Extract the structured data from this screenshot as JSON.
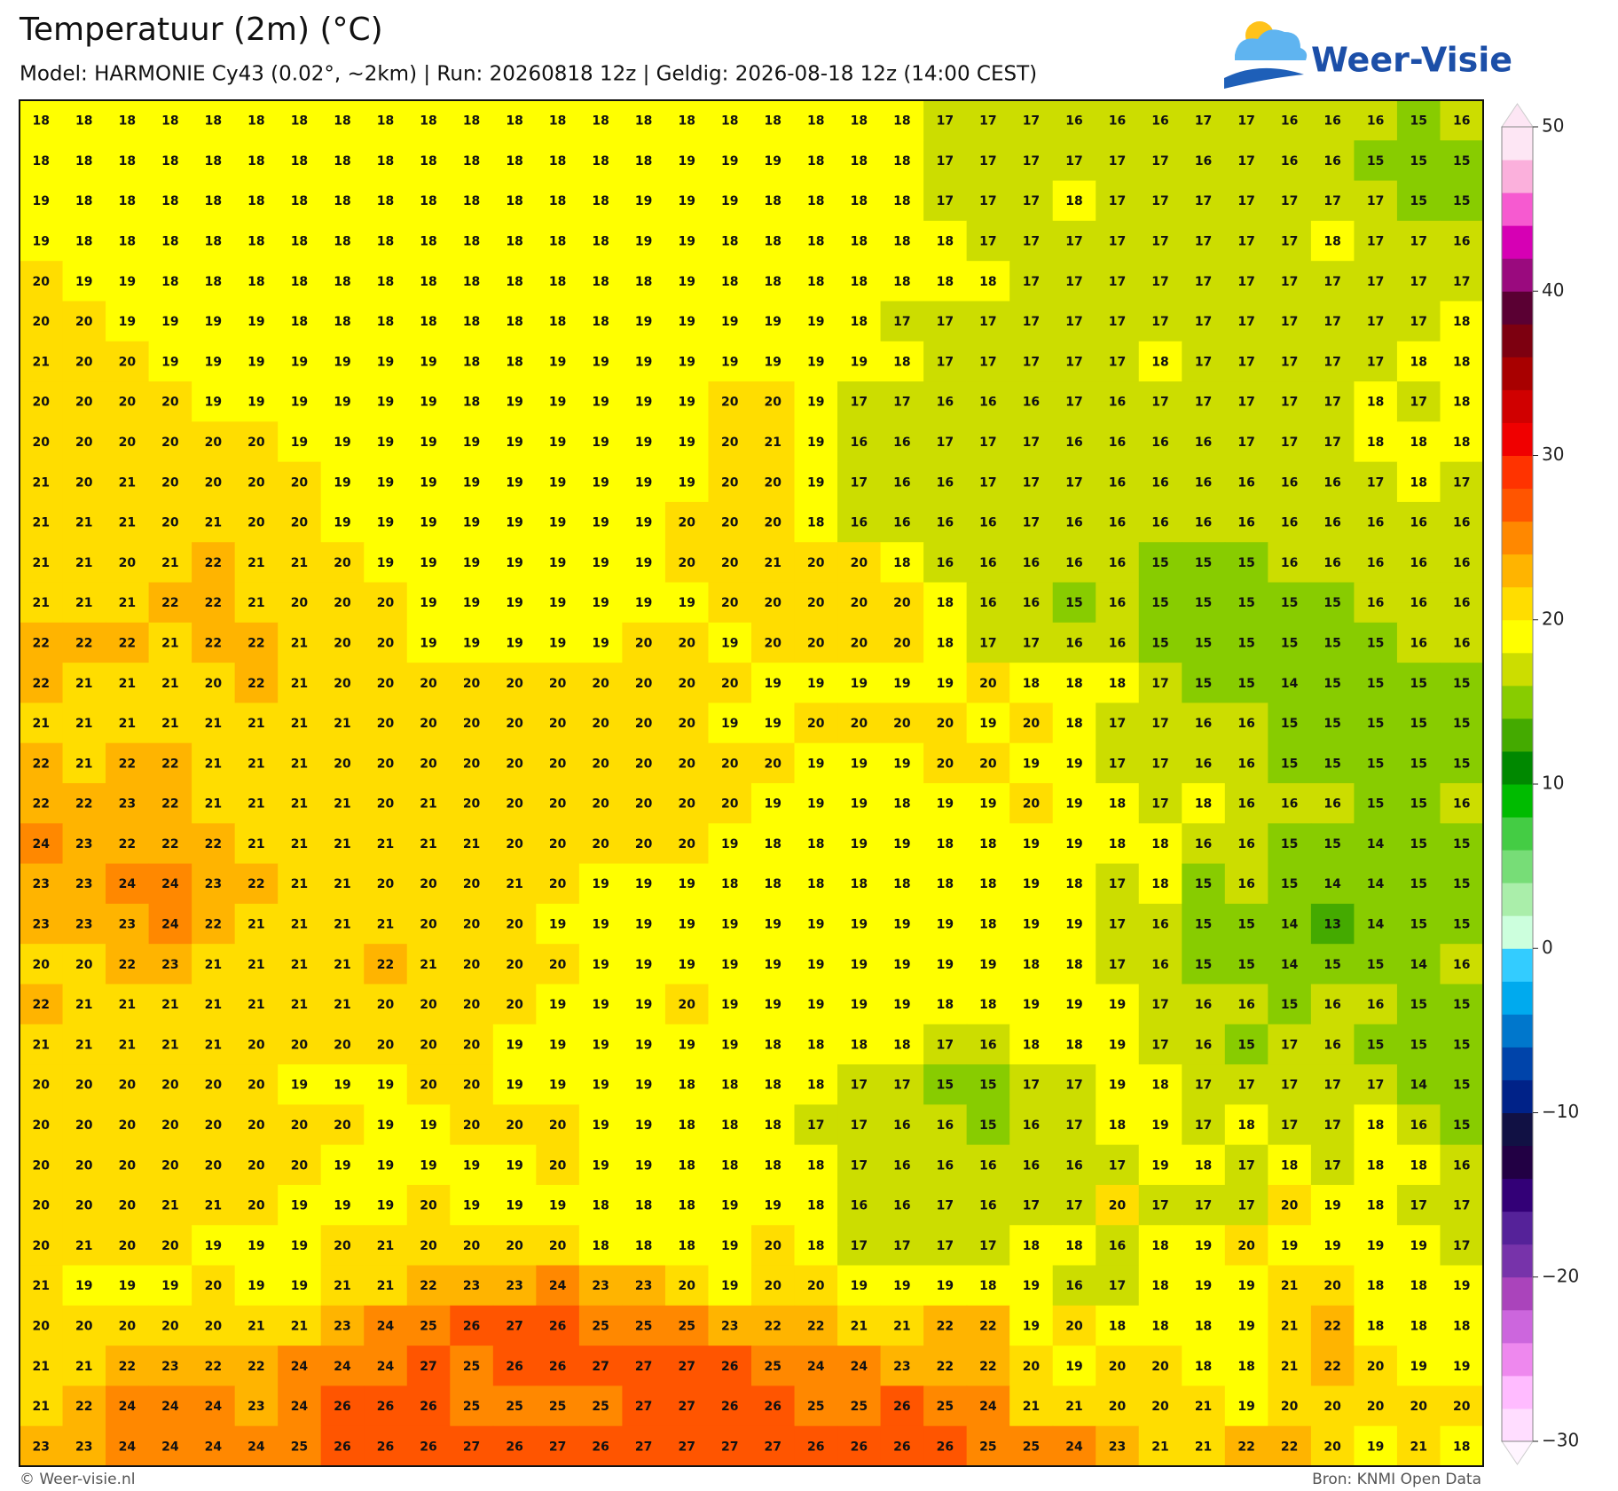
{
  "header": {
    "title": "Temperatuur (2m) (°C)",
    "subtitle": "Model: HARMONIE Cy43 (0.02°, ~2km)  |  Run: 20260818 12z  |  Geldig: 2026-08-18 12z (14:00 CEST)"
  },
  "logo": {
    "text": "Weer-Visie"
  },
  "map": {
    "grid": [
      [
        18,
        18,
        18,
        18,
        18,
        18,
        18,
        18,
        18,
        18,
        18,
        18,
        18,
        18,
        18,
        18,
        18,
        18,
        18,
        18,
        18,
        17,
        17,
        17,
        16,
        16,
        16,
        17,
        17,
        16,
        16,
        16,
        15,
        16
      ],
      [
        18,
        18,
        18,
        18,
        18,
        18,
        18,
        18,
        18,
        18,
        18,
        18,
        18,
        18,
        18,
        19,
        19,
        19,
        18,
        18,
        18,
        17,
        17,
        17,
        17,
        17,
        17,
        16,
        17,
        16,
        16,
        15,
        15,
        15
      ],
      [
        19,
        18,
        18,
        18,
        18,
        18,
        18,
        18,
        18,
        18,
        18,
        18,
        18,
        18,
        19,
        19,
        19,
        18,
        18,
        18,
        18,
        17,
        17,
        17,
        18,
        17,
        17,
        17,
        17,
        17,
        17,
        17,
        15,
        15
      ],
      [
        19,
        18,
        18,
        18,
        18,
        18,
        18,
        18,
        18,
        18,
        18,
        18,
        18,
        18,
        19,
        19,
        18,
        18,
        18,
        18,
        18,
        18,
        17,
        17,
        17,
        17,
        17,
        17,
        17,
        17,
        18,
        17,
        17,
        16
      ],
      [
        20,
        19,
        19,
        18,
        18,
        18,
        18,
        18,
        18,
        18,
        18,
        18,
        18,
        18,
        18,
        19,
        18,
        18,
        18,
        18,
        18,
        18,
        18,
        17,
        17,
        17,
        17,
        17,
        17,
        17,
        17,
        17,
        17,
        17
      ],
      [
        20,
        20,
        19,
        19,
        19,
        19,
        18,
        18,
        18,
        18,
        18,
        18,
        18,
        18,
        19,
        19,
        19,
        19,
        19,
        18,
        17,
        17,
        17,
        17,
        17,
        17,
        17,
        17,
        17,
        17,
        17,
        17,
        17,
        18
      ],
      [
        21,
        20,
        20,
        19,
        19,
        19,
        19,
        19,
        19,
        19,
        18,
        18,
        19,
        19,
        19,
        19,
        19,
        19,
        19,
        19,
        18,
        17,
        17,
        17,
        17,
        17,
        18,
        17,
        17,
        17,
        17,
        17,
        18,
        18
      ],
      [
        20,
        20,
        20,
        20,
        19,
        19,
        19,
        19,
        19,
        19,
        18,
        19,
        19,
        19,
        19,
        19,
        20,
        20,
        19,
        17,
        17,
        16,
        16,
        16,
        17,
        16,
        17,
        17,
        17,
        17,
        17,
        18,
        17,
        18
      ],
      [
        20,
        20,
        20,
        20,
        20,
        20,
        19,
        19,
        19,
        19,
        19,
        19,
        19,
        19,
        19,
        19,
        20,
        21,
        19,
        16,
        16,
        17,
        17,
        17,
        16,
        16,
        16,
        16,
        17,
        17,
        17,
        18,
        18,
        18
      ],
      [
        21,
        20,
        21,
        20,
        20,
        20,
        20,
        19,
        19,
        19,
        19,
        19,
        19,
        19,
        19,
        19,
        20,
        20,
        19,
        17,
        16,
        16,
        17,
        17,
        17,
        16,
        16,
        16,
        16,
        16,
        16,
        17,
        18,
        17
      ],
      [
        21,
        21,
        21,
        20,
        21,
        20,
        20,
        19,
        19,
        19,
        19,
        19,
        19,
        19,
        19,
        20,
        20,
        20,
        18,
        16,
        16,
        16,
        16,
        17,
        16,
        16,
        16,
        16,
        16,
        16,
        16,
        16,
        16,
        16
      ],
      [
        21,
        21,
        20,
        21,
        22,
        21,
        21,
        20,
        19,
        19,
        19,
        19,
        19,
        19,
        19,
        20,
        20,
        21,
        20,
        20,
        18,
        16,
        16,
        16,
        16,
        16,
        15,
        15,
        15,
        16,
        16,
        16,
        16,
        16
      ],
      [
        21,
        21,
        21,
        22,
        22,
        21,
        20,
        20,
        20,
        19,
        19,
        19,
        19,
        19,
        19,
        19,
        20,
        20,
        20,
        20,
        20,
        18,
        16,
        16,
        15,
        16,
        15,
        15,
        15,
        15,
        15,
        16,
        16,
        16
      ],
      [
        22,
        22,
        22,
        21,
        22,
        22,
        21,
        20,
        20,
        19,
        19,
        19,
        19,
        19,
        20,
        20,
        19,
        20,
        20,
        20,
        20,
        18,
        17,
        17,
        16,
        16,
        15,
        15,
        15,
        15,
        15,
        15,
        16,
        16
      ],
      [
        22,
        21,
        21,
        21,
        20,
        22,
        21,
        20,
        20,
        20,
        20,
        20,
        20,
        20,
        20,
        20,
        20,
        19,
        19,
        19,
        19,
        19,
        20,
        18,
        18,
        18,
        17,
        15,
        15,
        14,
        15,
        15,
        15,
        15
      ],
      [
        21,
        21,
        21,
        21,
        21,
        21,
        21,
        21,
        20,
        20,
        20,
        20,
        20,
        20,
        20,
        20,
        19,
        19,
        20,
        20,
        20,
        20,
        19,
        20,
        18,
        17,
        17,
        16,
        16,
        15,
        15,
        15,
        15,
        15
      ],
      [
        22,
        21,
        22,
        22,
        21,
        21,
        21,
        20,
        20,
        20,
        20,
        20,
        20,
        20,
        20,
        20,
        20,
        20,
        19,
        19,
        19,
        20,
        20,
        19,
        19,
        17,
        17,
        16,
        16,
        15,
        15,
        15,
        15,
        15
      ],
      [
        22,
        22,
        23,
        22,
        21,
        21,
        21,
        21,
        20,
        21,
        20,
        20,
        20,
        20,
        20,
        20,
        20,
        19,
        19,
        19,
        18,
        19,
        19,
        20,
        19,
        18,
        17,
        18,
        16,
        16,
        16,
        15,
        15,
        16
      ],
      [
        24,
        23,
        22,
        22,
        22,
        21,
        21,
        21,
        21,
        21,
        21,
        20,
        20,
        20,
        20,
        20,
        19,
        18,
        18,
        19,
        19,
        18,
        18,
        19,
        19,
        18,
        18,
        16,
        16,
        15,
        15,
        14,
        15,
        15
      ],
      [
        23,
        23,
        24,
        24,
        23,
        22,
        21,
        21,
        20,
        20,
        20,
        21,
        20,
        19,
        19,
        19,
        18,
        18,
        18,
        18,
        18,
        18,
        18,
        19,
        18,
        17,
        18,
        15,
        16,
        15,
        14,
        14,
        15,
        15
      ],
      [
        23,
        23,
        23,
        24,
        22,
        21,
        21,
        21,
        21,
        20,
        20,
        20,
        19,
        19,
        19,
        19,
        19,
        19,
        19,
        19,
        19,
        19,
        18,
        19,
        19,
        17,
        16,
        15,
        15,
        14,
        13,
        14,
        15,
        15
      ],
      [
        20,
        20,
        22,
        23,
        21,
        21,
        21,
        21,
        22,
        21,
        20,
        20,
        20,
        19,
        19,
        19,
        19,
        19,
        19,
        19,
        19,
        19,
        19,
        18,
        18,
        17,
        16,
        15,
        15,
        14,
        15,
        15,
        14,
        16
      ],
      [
        22,
        21,
        21,
        21,
        21,
        21,
        21,
        21,
        20,
        20,
        20,
        20,
        19,
        19,
        19,
        20,
        19,
        19,
        19,
        19,
        19,
        18,
        18,
        19,
        19,
        19,
        17,
        16,
        16,
        15,
        16,
        16,
        15,
        15
      ],
      [
        21,
        21,
        21,
        21,
        21,
        20,
        20,
        20,
        20,
        20,
        20,
        19,
        19,
        19,
        19,
        19,
        19,
        18,
        18,
        18,
        18,
        17,
        16,
        18,
        18,
        19,
        17,
        16,
        15,
        17,
        16,
        15,
        15,
        15
      ],
      [
        20,
        20,
        20,
        20,
        20,
        20,
        19,
        19,
        19,
        20,
        20,
        19,
        19,
        19,
        19,
        18,
        18,
        18,
        18,
        17,
        17,
        15,
        15,
        17,
        17,
        19,
        18,
        17,
        17,
        17,
        17,
        17,
        14,
        15
      ],
      [
        20,
        20,
        20,
        20,
        20,
        20,
        20,
        20,
        19,
        19,
        20,
        20,
        20,
        19,
        19,
        18,
        18,
        18,
        17,
        17,
        16,
        16,
        15,
        16,
        17,
        18,
        19,
        17,
        18,
        17,
        17,
        18,
        16,
        15
      ],
      [
        20,
        20,
        20,
        20,
        20,
        20,
        20,
        19,
        19,
        19,
        19,
        19,
        20,
        19,
        19,
        18,
        18,
        18,
        18,
        17,
        16,
        16,
        16,
        16,
        16,
        17,
        19,
        18,
        17,
        18,
        17,
        18,
        18,
        16
      ],
      [
        20,
        20,
        20,
        21,
        21,
        20,
        19,
        19,
        19,
        20,
        19,
        19,
        19,
        18,
        18,
        18,
        19,
        19,
        18,
        16,
        16,
        17,
        16,
        17,
        17,
        20,
        17,
        17,
        17,
        20,
        19,
        18,
        17,
        17
      ],
      [
        20,
        21,
        20,
        20,
        19,
        19,
        19,
        20,
        21,
        20,
        20,
        20,
        20,
        18,
        18,
        18,
        19,
        20,
        18,
        17,
        17,
        17,
        17,
        18,
        18,
        16,
        18,
        19,
        20,
        19,
        19,
        19,
        19,
        17
      ],
      [
        21,
        19,
        19,
        19,
        20,
        19,
        19,
        21,
        21,
        22,
        23,
        23,
        24,
        23,
        23,
        20,
        19,
        20,
        20,
        19,
        19,
        19,
        18,
        19,
        16,
        17,
        18,
        19,
        19,
        21,
        20,
        18,
        18,
        19
      ],
      [
        20,
        20,
        20,
        20,
        20,
        21,
        21,
        23,
        24,
        25,
        26,
        27,
        26,
        25,
        25,
        25,
        23,
        22,
        22,
        21,
        21,
        22,
        22,
        19,
        20,
        18,
        18,
        18,
        19,
        21,
        22,
        18,
        18,
        18
      ],
      [
        21,
        21,
        22,
        23,
        22,
        22,
        24,
        24,
        24,
        27,
        25,
        26,
        26,
        27,
        27,
        27,
        26,
        25,
        24,
        24,
        23,
        22,
        22,
        20,
        19,
        20,
        20,
        18,
        18,
        21,
        22,
        20,
        19,
        19
      ],
      [
        21,
        22,
        24,
        24,
        24,
        23,
        24,
        26,
        26,
        26,
        25,
        25,
        25,
        25,
        27,
        27,
        26,
        26,
        25,
        25,
        26,
        25,
        24,
        21,
        21,
        20,
        20,
        21,
        19,
        20,
        20,
        20,
        20,
        20
      ],
      [
        23,
        23,
        24,
        24,
        24,
        24,
        25,
        26,
        26,
        26,
        27,
        26,
        27,
        26,
        27,
        27,
        27,
        27,
        26,
        26,
        26,
        26,
        25,
        25,
        24,
        23,
        21,
        21,
        22,
        22,
        20,
        19,
        21,
        18
      ]
    ]
  },
  "colorbar": {
    "lim": [
      -30,
      50
    ],
    "levels": [
      -30,
      -28,
      -26,
      -24,
      -22,
      -20,
      -18,
      -16,
      -14,
      -12,
      -10,
      -8,
      -6,
      -4,
      -2,
      0,
      2,
      4,
      6,
      8,
      10,
      12,
      14,
      16,
      18,
      20,
      22,
      24,
      26,
      28,
      30,
      32,
      34,
      36,
      38,
      40,
      42,
      44,
      46,
      48,
      50
    ],
    "colors": [
      "#ffddff",
      "#ffbbff",
      "#ee88ee",
      "#cc66dd",
      "#aa44bb",
      "#7733aa",
      "#552299",
      "#330077",
      "#220044",
      "#111144",
      "#002288",
      "#0044aa",
      "#0077cc",
      "#00aaee",
      "#33ccff",
      "#ccffdd",
      "#aaeeaa",
      "#77dd77",
      "#44cc44",
      "#00bb00",
      "#008800",
      "#44aa00",
      "#88cc00",
      "#ccdd00",
      "#ffff00",
      "#ffdd00",
      "#ffb400",
      "#ff8800",
      "#ff5500",
      "#ff3300",
      "#f00000",
      "#d00000",
      "#a80000",
      "#7d0010",
      "#5a0033",
      "#9a0a7e",
      "#d600b4",
      "#f65ad0",
      "#fbb0dc",
      "#fde6f4"
    ],
    "ticks": [
      {
        "value": -30,
        "label": "−30"
      },
      {
        "value": -20,
        "label": "−20"
      },
      {
        "value": -10,
        "label": "−10"
      },
      0,
      10,
      20,
      30,
      40,
      50
    ]
  },
  "footer": {
    "left": "© Weer-visie.nl",
    "right": "Bron: KNMI Open Data"
  }
}
